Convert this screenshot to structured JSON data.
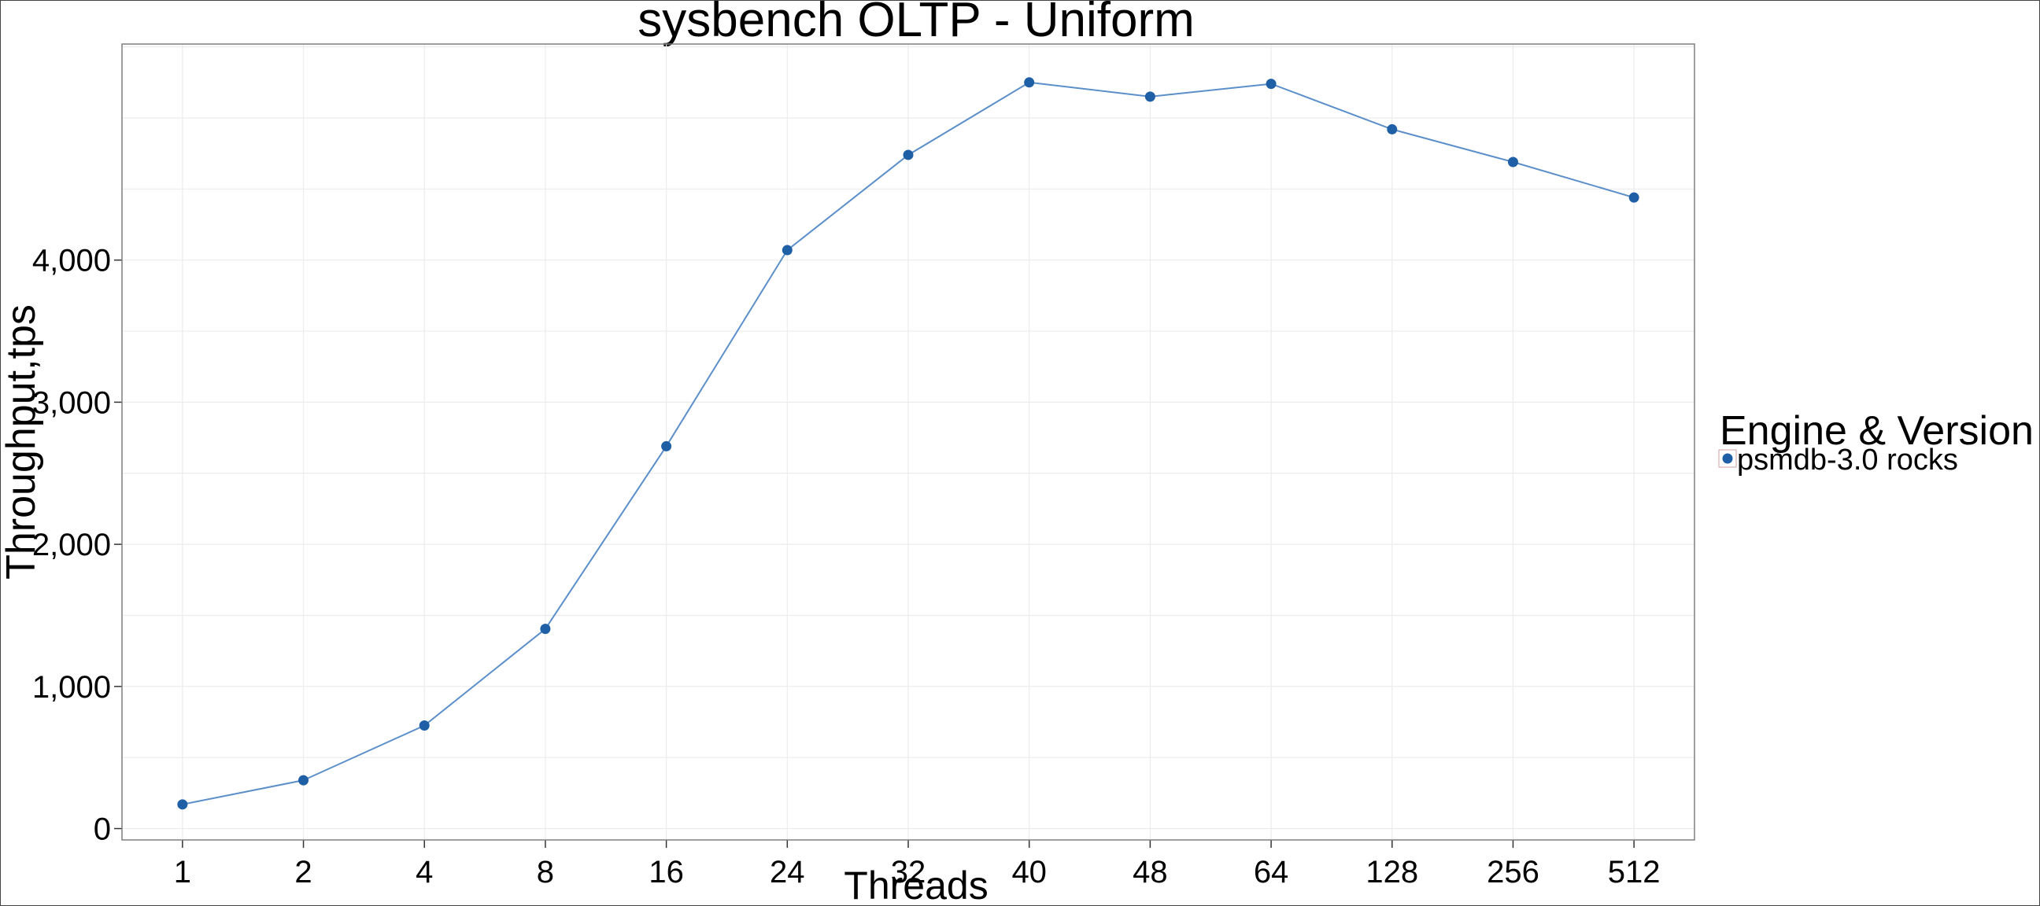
{
  "chart_data": {
    "type": "line",
    "title": "sysbench OLTP - Uniform",
    "xlabel": "Threads",
    "ylabel": "Throughput,tps",
    "categories": [
      "1",
      "2",
      "4",
      "8",
      "16",
      "24",
      "32",
      "40",
      "48",
      "64",
      "128",
      "256",
      "512"
    ],
    "series": [
      {
        "name": "psmdb-3.0 rocks",
        "values": [
          170,
          340,
          725,
          1405,
          2690,
          4070,
          4740,
          5250,
          5150,
          5240,
          4920,
          4690,
          4440
        ]
      }
    ],
    "ylim": [
      -80,
      5520
    ],
    "yticks": [
      0,
      1000,
      2000,
      3000,
      4000
    ],
    "ytick_labels": [
      "0",
      "1,000",
      "2,000",
      "3,000",
      "4,000"
    ],
    "grid": true,
    "legend": {
      "title": "Engine & Version",
      "placement": "right"
    },
    "colors": {
      "series": "#1f5fa6",
      "line": "#5b8fc9",
      "grid": "#ececec",
      "panel_border": "#7f7f7f",
      "legend_key_border": "#d0a0a0"
    }
  }
}
